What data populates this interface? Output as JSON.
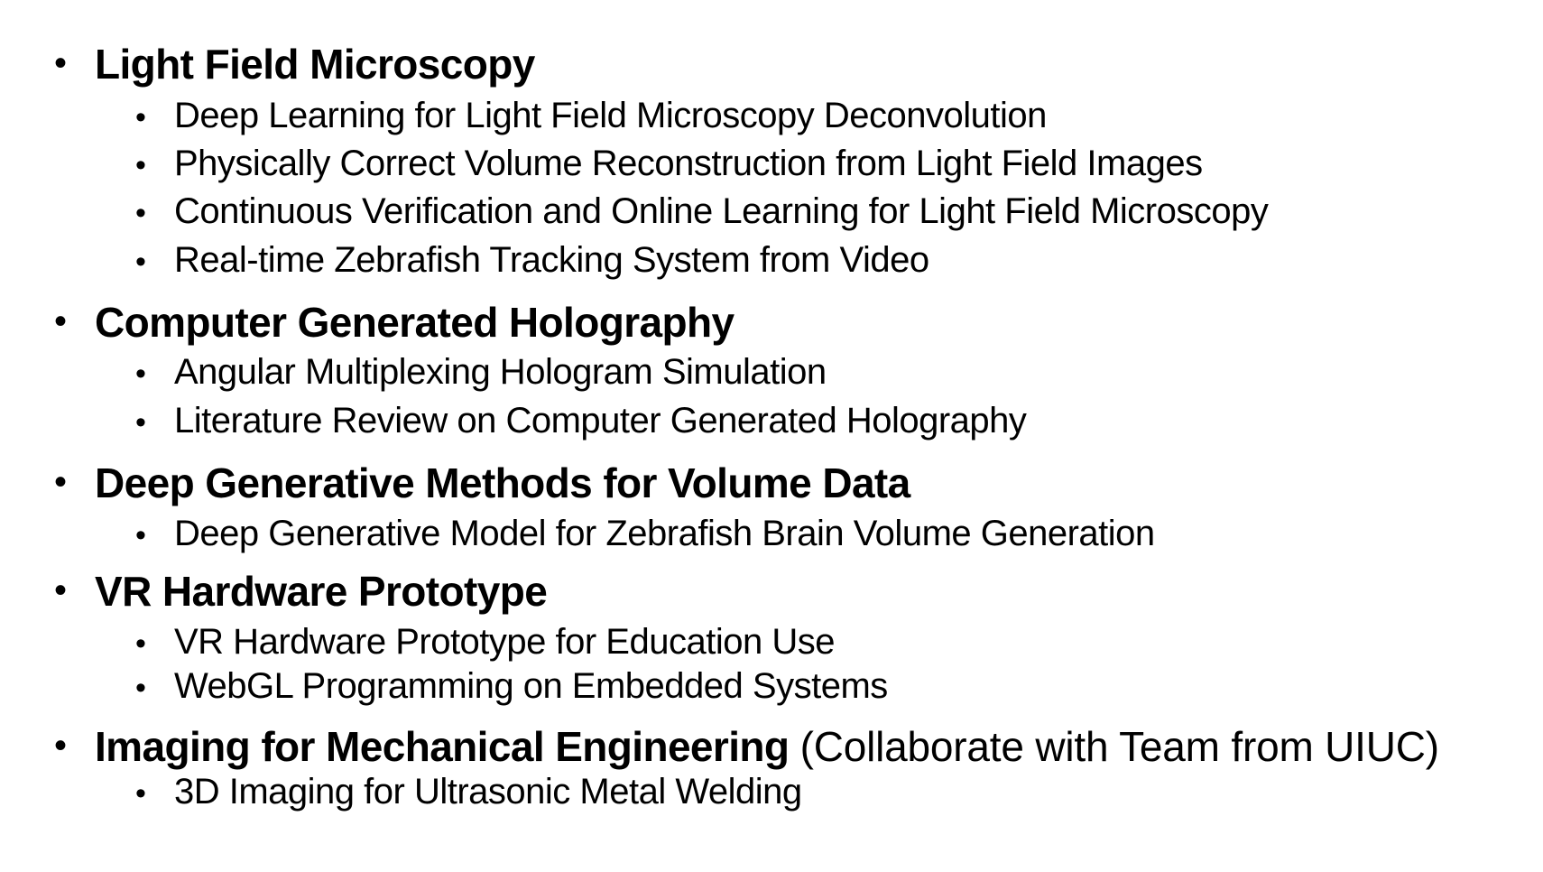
{
  "sections": [
    {
      "title": "Light Field Microscopy",
      "note": "",
      "items": [
        "Deep Learning for Light Field Microscopy Deconvolution",
        "Physically Correct Volume Reconstruction from Light Field Images",
        "Continuous Verification and Online Learning for Light Field Microscopy",
        "Real-time Zebrafish Tracking System from Video"
      ]
    },
    {
      "title": "Computer Generated Holography",
      "note": "",
      "items": [
        "Angular Multiplexing Hologram Simulation",
        "Literature Review on Computer Generated Holography"
      ]
    },
    {
      "title": "Deep Generative Methods for Volume Data",
      "note": "",
      "items": [
        "Deep Generative Model for Zebrafish Brain Volume Generation"
      ]
    },
    {
      "title": "VR Hardware Prototype",
      "note": "",
      "items": [
        "VR Hardware Prototype for Education Use",
        "WebGL Programming on Embedded Systems"
      ]
    },
    {
      "title": "Imaging for Mechanical Engineering",
      "note": "(Collaborate with Team from UIUC)",
      "items": [
        "3D Imaging for Ultrasonic Metal Welding"
      ]
    }
  ]
}
